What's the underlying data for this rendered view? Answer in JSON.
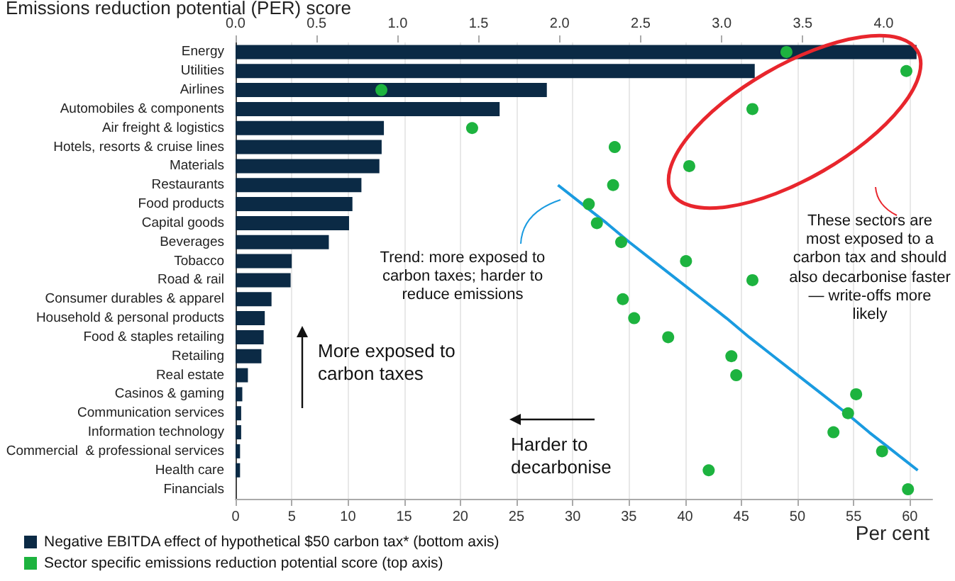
{
  "chart_data": {
    "type": "bar",
    "orientation": "horizontal",
    "x2label": "Emissions reduction potential (PER) score",
    "xlabel": "Per cent",
    "categories": [
      "Energy",
      "Utilities",
      "Airlines",
      "Automobiles & components",
      "Air freight & logistics",
      "Hotels, resorts & cruise lines",
      "Materials",
      "Restaurants",
      "Food products",
      "Capital goods",
      "Beverages",
      "Tobacco",
      "Road & rail",
      "Consumer durables & apparel",
      "Household & personal products",
      "Food & staples retailing",
      "Retailing",
      "Real estate",
      "Casinos & gaming",
      "Communication services",
      "Information technology",
      "Commercial  & professional services",
      "Health care",
      "Financials"
    ],
    "series": [
      {
        "name": "Negative EBITDA effect of hypothetical $50 carbon tax* (bottom axis)",
        "color": "#0b2a45",
        "values": [
          60.6,
          46.2,
          27.7,
          23.5,
          13.2,
          13.0,
          12.8,
          11.2,
          10.4,
          10.1,
          8.3,
          5.0,
          4.9,
          3.2,
          2.6,
          2.5,
          2.3,
          1.1,
          0.6,
          0.5,
          0.5,
          0.4,
          0.4,
          0
        ]
      },
      {
        "name": "Sector specific emissions reduction potential score (top axis)",
        "type": "scatter",
        "axis": "x2",
        "color": "#1db33f",
        "values": [
          3.4,
          4.14,
          0.9,
          3.19,
          1.46,
          2.34,
          2.8,
          2.33,
          2.18,
          2.23,
          2.38,
          2.78,
          3.19,
          2.39,
          2.46,
          2.67,
          3.06,
          3.09,
          3.83,
          3.78,
          3.69,
          3.99,
          2.92,
          4.15
        ]
      },
      {
        "type": "line",
        "axis": "x2",
        "color": "#1a9be0",
        "values": [
          null,
          null,
          null,
          null,
          null,
          null,
          null,
          1.99,
          2.14,
          2.29,
          2.43,
          2.58,
          2.73,
          2.88,
          3.03,
          3.17,
          3.32,
          3.47,
          3.62,
          3.77,
          3.91,
          4.06,
          4.21,
          null
        ]
      }
    ],
    "xlim": [
      0,
      62
    ],
    "xticks": [
      0,
      5,
      10,
      15,
      20,
      25,
      30,
      35,
      40,
      45,
      50,
      55,
      60
    ],
    "x2lim": [
      0,
      4.3
    ],
    "x2ticks": [
      {
        "value": 0,
        "label": "0.0"
      },
      {
        "value": 0.5,
        "label": "0.5"
      },
      {
        "value": 1,
        "label": "1.0"
      },
      {
        "value": 1.5,
        "label": "1.5"
      },
      {
        "value": 2,
        "label": "2.0"
      },
      {
        "value": 2.5,
        "label": "2.5"
      },
      {
        "value": 3,
        "label": "3.0"
      },
      {
        "value": 3.5,
        "label": "3.5"
      },
      {
        "value": 4,
        "label": "4.0"
      }
    ],
    "grid": "x",
    "legend": "bottom left",
    "annotations": [
      "Trend: more exposed to carbon taxes; harder to reduce emissions",
      "These sectors are most exposed to a carbon tax and should also decarbonise faster — write-offs more likely",
      "More exposed to carbon taxes",
      "Harder to decarbonise"
    ]
  }
}
